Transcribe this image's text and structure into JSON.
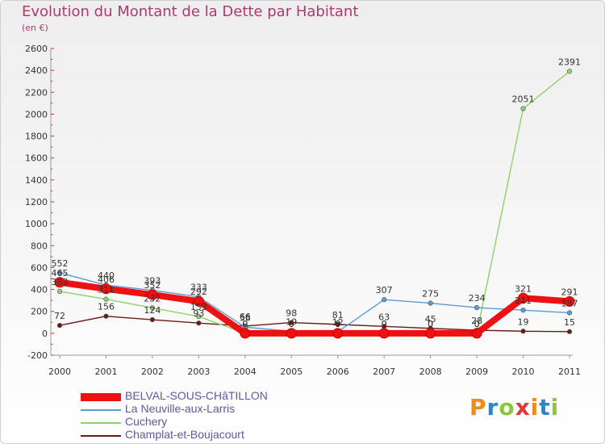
{
  "header": {
    "title": "Evolution du Montant de la Dette par Habitant",
    "unit": "(en €)"
  },
  "logo": {
    "text": "Proxiti",
    "colors": [
      "#f08a1c",
      "#2e86c8",
      "#8cc63e",
      "#e23a3a",
      "#f08a1c",
      "#2e86c8",
      "#8cc63e"
    ]
  },
  "chart_data": {
    "type": "line",
    "x": [
      "2000",
      "2001",
      "2002",
      "2003",
      "2004",
      "2005",
      "2006",
      "2007",
      "2008",
      "2009",
      "2010",
      "2011"
    ],
    "ylim": [
      -200,
      2600
    ],
    "yticks": [
      -200,
      0,
      200,
      400,
      600,
      800,
      1000,
      1200,
      1400,
      1600,
      1800,
      2000,
      2200,
      2400,
      2600
    ],
    "grid": false,
    "legend_position": "bottom-left",
    "series": [
      {
        "name": "BELVAL-SOUS-CHâTILLON",
        "color": "#ee1111",
        "width": 8,
        "values": [
          465,
          406,
          352,
          292,
          0,
          0,
          0,
          0,
          0,
          0,
          321,
          291
        ],
        "labels": [
          "465",
          "406",
          "352",
          "292",
          "0",
          "0",
          "0",
          "0",
          "0",
          "0",
          "321",
          "291"
        ]
      },
      {
        "name": "La Neuville-aux-Larris",
        "color": "#5b9bd5",
        "width": 1.4,
        "values": [
          552,
          440,
          393,
          333,
          56,
          19,
          12,
          307,
          275,
          234,
          211,
          187
        ],
        "labels": [
          "552",
          "440",
          "393",
          "333",
          "56",
          "19",
          "12",
          "307",
          "275",
          "234",
          "211",
          "187"
        ]
      },
      {
        "name": "Cuchery",
        "color": "#8fd16a",
        "width": 1.4,
        "values": [
          383,
          311,
          232,
          153,
          0,
          0,
          0,
          0,
          0,
          0,
          2051,
          2391
        ],
        "labels": [
          "383",
          "311",
          "232",
          "153",
          "0",
          "0",
          "0",
          "0",
          "0",
          "0",
          "2051",
          "2391"
        ]
      },
      {
        "name": "Champlat-et-Boujacourt",
        "color": "#6b1a1a",
        "width": 1.4,
        "values": [
          72,
          156,
          124,
          93,
          66,
          98,
          81,
          63,
          45,
          28,
          19,
          15
        ],
        "labels": [
          "72",
          "156",
          "124",
          "93",
          "66",
          "98",
          "81",
          "63",
          "45",
          "28",
          "19",
          "15"
        ]
      }
    ]
  }
}
